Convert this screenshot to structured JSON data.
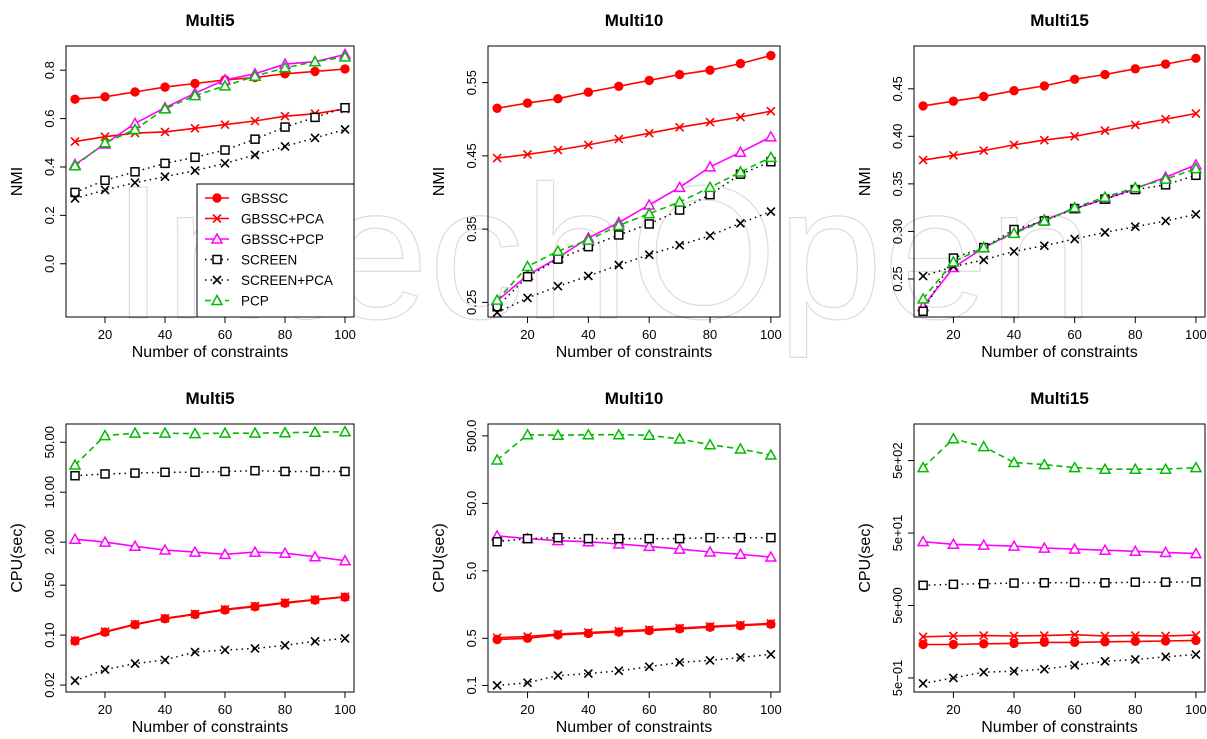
{
  "watermark": "IntechOpen",
  "colors": {
    "GBSSC": "#ff0000",
    "GBSSC+PCA": "#ff0000",
    "GBSSC+PCP": "#ff00ff",
    "SCREEN": "#000000",
    "SCREEN+PCA": "#000000",
    "PCP": "#00bb00"
  },
  "legend": {
    "placement": "inside-bottom-right of Multi5 NMI panel",
    "entries": [
      "GBSSC",
      "GBSSC+PCA",
      "GBSSC+PCP",
      "SCREEN",
      "SCREEN+PCA",
      "PCP"
    ]
  },
  "chart_data": [
    {
      "type": "line",
      "title": "Multi5",
      "xlabel": "Number of constraints",
      "ylabel": "NMI",
      "scale": "linear",
      "xlim": [
        7,
        103
      ],
      "ylim": [
        -0.22,
        0.9
      ],
      "xticks": [
        "20",
        "40",
        "60",
        "80",
        "100"
      ],
      "yticks": [
        "0.0",
        "0.2",
        "0.4",
        "0.6",
        "0.8"
      ],
      "x": [
        10,
        20,
        30,
        40,
        50,
        60,
        70,
        80,
        90,
        100
      ],
      "series": [
        {
          "name": "GBSSC",
          "values": [
            0.68,
            0.69,
            0.71,
            0.73,
            0.745,
            0.76,
            0.77,
            0.785,
            0.795,
            0.805
          ]
        },
        {
          "name": "GBSSC+PCA",
          "values": [
            0.505,
            0.525,
            0.54,
            0.545,
            0.56,
            0.575,
            0.59,
            0.61,
            0.62,
            0.64
          ]
        },
        {
          "name": "GBSSC+PCP",
          "values": [
            0.41,
            0.495,
            0.58,
            0.645,
            0.705,
            0.76,
            0.785,
            0.825,
            0.835,
            0.865
          ]
        },
        {
          "name": "SCREEN",
          "values": [
            0.295,
            0.345,
            0.38,
            0.415,
            0.44,
            0.47,
            0.515,
            0.565,
            0.605,
            0.645
          ]
        },
        {
          "name": "SCREEN+PCA",
          "values": [
            0.27,
            0.305,
            0.335,
            0.36,
            0.385,
            0.415,
            0.45,
            0.485,
            0.52,
            0.555
          ]
        },
        {
          "name": "PCP",
          "values": [
            0.405,
            0.5,
            0.555,
            0.64,
            0.695,
            0.735,
            0.775,
            0.81,
            0.835,
            0.855
          ]
        }
      ]
    },
    {
      "type": "line",
      "title": "Multi10",
      "xlabel": "Number of constraints",
      "ylabel": "NMI",
      "scale": "linear",
      "xlim": [
        7,
        103
      ],
      "ylim": [
        0.23,
        0.6
      ],
      "xticks": [
        "20",
        "40",
        "60",
        "80",
        "100"
      ],
      "yticks": [
        "0.25",
        "0.35",
        "0.45",
        "0.55"
      ],
      "x": [
        10,
        20,
        30,
        40,
        50,
        60,
        70,
        80,
        90,
        100
      ],
      "series": [
        {
          "name": "GBSSC",
          "values": [
            0.515,
            0.522,
            0.528,
            0.537,
            0.545,
            0.553,
            0.561,
            0.567,
            0.576,
            0.587
          ]
        },
        {
          "name": "GBSSC+PCA",
          "values": [
            0.447,
            0.452,
            0.458,
            0.465,
            0.473,
            0.481,
            0.489,
            0.496,
            0.503,
            0.511
          ]
        },
        {
          "name": "GBSSC+PCP",
          "values": [
            0.252,
            0.287,
            0.311,
            0.338,
            0.359,
            0.383,
            0.407,
            0.435,
            0.455,
            0.476
          ]
        },
        {
          "name": "SCREEN",
          "values": [
            0.244,
            0.285,
            0.309,
            0.326,
            0.342,
            0.357,
            0.376,
            0.397,
            0.425,
            0.442
          ]
        },
        {
          "name": "SCREEN+PCA",
          "values": [
            0.236,
            0.256,
            0.272,
            0.286,
            0.301,
            0.315,
            0.328,
            0.341,
            0.358,
            0.374
          ]
        },
        {
          "name": "PCP",
          "values": [
            0.253,
            0.299,
            0.32,
            0.335,
            0.355,
            0.371,
            0.387,
            0.407,
            0.428,
            0.448
          ]
        }
      ]
    },
    {
      "type": "line",
      "title": "Multi15",
      "xlabel": "Number of constraints",
      "ylabel": "NMI",
      "scale": "linear",
      "xlim": [
        7,
        103
      ],
      "ylim": [
        0.21,
        0.495
      ],
      "xticks": [
        "20",
        "40",
        "60",
        "80",
        "100"
      ],
      "yticks": [
        "0.25",
        "0.30",
        "0.35",
        "0.40",
        "0.45"
      ],
      "x": [
        10,
        20,
        30,
        40,
        50,
        60,
        70,
        80,
        90,
        100
      ],
      "series": [
        {
          "name": "GBSSC",
          "values": [
            0.432,
            0.437,
            0.442,
            0.448,
            0.453,
            0.46,
            0.465,
            0.471,
            0.476,
            0.482
          ]
        },
        {
          "name": "GBSSC+PCA",
          "values": [
            0.375,
            0.38,
            0.385,
            0.391,
            0.396,
            0.4,
            0.406,
            0.412,
            0.418,
            0.424
          ]
        },
        {
          "name": "GBSSC+PCP",
          "values": [
            0.221,
            0.262,
            0.283,
            0.299,
            0.312,
            0.324,
            0.334,
            0.345,
            0.357,
            0.37
          ]
        },
        {
          "name": "SCREEN",
          "values": [
            0.216,
            0.272,
            0.283,
            0.302,
            0.311,
            0.324,
            0.334,
            0.344,
            0.349,
            0.359
          ]
        },
        {
          "name": "SCREEN+PCA",
          "values": [
            0.253,
            0.263,
            0.27,
            0.279,
            0.285,
            0.292,
            0.299,
            0.305,
            0.311,
            0.318
          ]
        },
        {
          "name": "PCP",
          "values": [
            0.229,
            0.268,
            0.283,
            0.298,
            0.311,
            0.325,
            0.336,
            0.346,
            0.355,
            0.366
          ]
        }
      ]
    },
    {
      "type": "line",
      "title": "Multi5",
      "xlabel": "Number of constraints",
      "ylabel": "CPU(sec)",
      "scale": "log",
      "xlim": [
        7,
        103
      ],
      "ylim": [
        0.016,
        90
      ],
      "xticks": [
        "20",
        "40",
        "60",
        "80",
        "100"
      ],
      "yticks": [
        {
          "value": 0.02,
          "label": "0.02"
        },
        {
          "value": 0.1,
          "label": "0.10"
        },
        {
          "value": 0.5,
          "label": "0.50"
        },
        {
          "value": 2,
          "label": "2.00"
        },
        {
          "value": 10,
          "label": "10.00"
        },
        {
          "value": 50,
          "label": "50.00"
        }
      ],
      "x": [
        10,
        20,
        30,
        40,
        50,
        60,
        70,
        80,
        90,
        100
      ],
      "series": [
        {
          "name": "GBSSC",
          "values": [
            0.083,
            0.11,
            0.14,
            0.17,
            0.195,
            0.225,
            0.25,
            0.28,
            0.31,
            0.34
          ]
        },
        {
          "name": "GBSSC+PCA",
          "values": [
            0.084,
            0.112,
            0.142,
            0.172,
            0.198,
            0.23,
            0.255,
            0.285,
            0.315,
            0.345
          ]
        },
        {
          "name": "GBSSC+PCP",
          "values": [
            2.2,
            2.0,
            1.75,
            1.55,
            1.45,
            1.35,
            1.45,
            1.4,
            1.25,
            1.1
          ]
        },
        {
          "name": "SCREEN",
          "values": [
            17,
            18,
            18.5,
            19,
            19,
            19.5,
            20,
            19.5,
            19.5,
            19.5
          ]
        },
        {
          "name": "SCREEN+PCA",
          "values": [
            0.023,
            0.033,
            0.04,
            0.045,
            0.058,
            0.062,
            0.065,
            0.072,
            0.082,
            0.09
          ]
        },
        {
          "name": "PCP",
          "values": [
            24,
            62,
            67,
            67,
            66,
            67,
            67,
            68,
            69,
            70
          ]
        }
      ]
    },
    {
      "type": "line",
      "title": "Multi10",
      "xlabel": "Number of constraints",
      "ylabel": "CPU(sec)",
      "scale": "log",
      "xlim": [
        7,
        103
      ],
      "ylim": [
        0.08,
        750
      ],
      "xticks": [
        "20",
        "40",
        "60",
        "80",
        "100"
      ],
      "yticks": [
        {
          "value": 0.1,
          "label": "0.1"
        },
        {
          "value": 0.5,
          "label": "0.5"
        },
        {
          "value": 5,
          "label": "5.0"
        },
        {
          "value": 50,
          "label": "50.0"
        },
        {
          "value": 500,
          "label": "500.0"
        }
      ],
      "x": [
        10,
        20,
        30,
        40,
        50,
        60,
        70,
        80,
        90,
        100
      ],
      "series": [
        {
          "name": "GBSSC",
          "values": [
            0.48,
            0.5,
            0.56,
            0.59,
            0.62,
            0.65,
            0.69,
            0.73,
            0.77,
            0.81
          ]
        },
        {
          "name": "GBSSC+PCA",
          "values": [
            0.51,
            0.53,
            0.58,
            0.61,
            0.64,
            0.67,
            0.71,
            0.75,
            0.79,
            0.83
          ]
        },
        {
          "name": "GBSSC+PCP",
          "values": [
            16.5,
            15,
            14,
            13.5,
            12.5,
            11.5,
            10.5,
            9.5,
            8.8,
            8.0
          ]
        },
        {
          "name": "SCREEN",
          "values": [
            13.5,
            15,
            15.5,
            15,
            15,
            15,
            15,
            15.5,
            15.5,
            15.5
          ]
        },
        {
          "name": "SCREEN+PCA",
          "values": [
            0.1,
            0.11,
            0.14,
            0.15,
            0.165,
            0.19,
            0.22,
            0.235,
            0.26,
            0.29
          ]
        },
        {
          "name": "PCP",
          "values": [
            220,
            520,
            510,
            520,
            520,
            510,
            450,
            370,
            320,
            260
          ]
        }
      ]
    },
    {
      "type": "line",
      "title": "Multi15",
      "xlabel": "Number of constraints",
      "ylabel": "CPU(sec)",
      "scale": "log",
      "xlim": [
        7,
        103
      ],
      "ylim": [
        0.32,
        1600
      ],
      "xticks": [
        "20",
        "40",
        "60",
        "80",
        "100"
      ],
      "yticks": [
        {
          "value": 0.5,
          "label": "5e−01"
        },
        {
          "value": 5,
          "label": "5e+00"
        },
        {
          "value": 50,
          "label": "5e+01"
        },
        {
          "value": 500,
          "label": "5e+02"
        }
      ],
      "x": [
        10,
        20,
        30,
        40,
        50,
        60,
        70,
        80,
        90,
        100
      ],
      "series": [
        {
          "name": "GBSSC",
          "values": [
            1.45,
            1.45,
            1.48,
            1.5,
            1.55,
            1.55,
            1.58,
            1.6,
            1.62,
            1.65
          ]
        },
        {
          "name": "GBSSC+PCA",
          "values": [
            1.85,
            1.9,
            1.92,
            1.9,
            1.92,
            1.98,
            1.9,
            1.92,
            1.9,
            1.95
          ]
        },
        {
          "name": "GBSSC+PCP",
          "values": [
            38,
            35,
            34,
            33,
            31,
            30,
            29,
            28,
            27,
            26
          ]
        },
        {
          "name": "SCREEN",
          "values": [
            9.5,
            9.8,
            10,
            10.2,
            10.3,
            10.4,
            10.3,
            10.5,
            10.5,
            10.6
          ]
        },
        {
          "name": "SCREEN+PCA",
          "values": [
            0.42,
            0.5,
            0.6,
            0.62,
            0.66,
            0.75,
            0.85,
            0.9,
            0.98,
            1.05
          ]
        },
        {
          "name": "PCP",
          "values": [
            400,
            1000,
            780,
            470,
            440,
            400,
            380,
            380,
            380,
            400
          ]
        }
      ]
    }
  ]
}
